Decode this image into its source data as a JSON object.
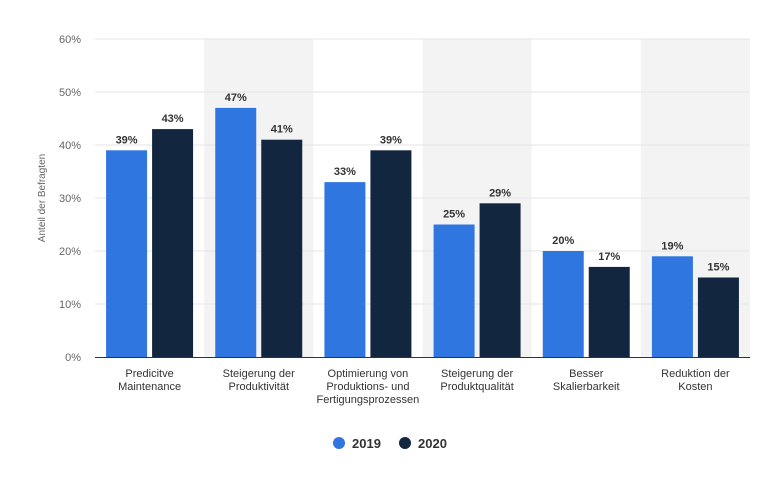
{
  "chart_data": {
    "type": "bar",
    "title": "",
    "xlabel": "",
    "ylabel": "Anteil der Befragten",
    "ylim": [
      0,
      60
    ],
    "y_ticks": [
      "0%",
      "10%",
      "20%",
      "30%",
      "40%",
      "50%",
      "60%"
    ],
    "y_tick_values": [
      0,
      10,
      20,
      30,
      40,
      50,
      60
    ],
    "grid": true,
    "legend_position": "bottom-center",
    "categories": [
      [
        "Predicitve",
        "Maintenance"
      ],
      [
        "Steigerung der",
        "Produktivität"
      ],
      [
        "Optimierung von",
        "Produktions- und",
        "Fertigungsprozessen"
      ],
      [
        "Steigerung der",
        "Produktqualität"
      ],
      [
        "Besser",
        "Skalierbarkeit"
      ],
      [
        "Reduktion der",
        "Kosten"
      ]
    ],
    "series": [
      {
        "name": "2019",
        "color": "#2f76e1",
        "values": [
          39,
          47,
          33,
          25,
          20,
          19
        ],
        "labels": [
          "39%",
          "47%",
          "33%",
          "25%",
          "20%",
          "19%"
        ]
      },
      {
        "name": "2020",
        "color": "#12263f",
        "values": [
          43,
          41,
          39,
          29,
          17,
          15
        ],
        "labels": [
          "43%",
          "41%",
          "39%",
          "29%",
          "17%",
          "15%"
        ]
      }
    ],
    "band_color": "#f3f3f3",
    "grid_color": "#e5e5e5",
    "axis_color": "#333333"
  }
}
